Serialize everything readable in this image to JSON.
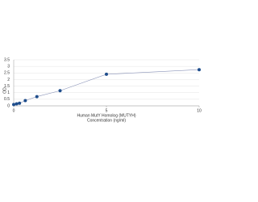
{
  "chart_data": {
    "type": "line",
    "x_label": "Human MutY Homolog (MUTYH)",
    "x_label_2": "Concentration (ng/ml)",
    "y_label": "OD",
    "x": [
      0,
      0.156,
      0.312,
      0.625,
      1.25,
      2.5,
      5,
      10
    ],
    "series": [
      {
        "color": "#1f4e8c",
        "values": [
          0.1,
          0.15,
          0.2,
          0.4,
          0.7,
          1.15,
          2.4,
          2.75
        ]
      }
    ],
    "xlim": [
      0,
      10
    ],
    "xticks": [
      0,
      5,
      10
    ],
    "ylim": [
      0,
      3.5
    ],
    "yticks": [
      0,
      0.5,
      1,
      1.5,
      2,
      2.5,
      3,
      3.5
    ],
    "grid": true
  }
}
